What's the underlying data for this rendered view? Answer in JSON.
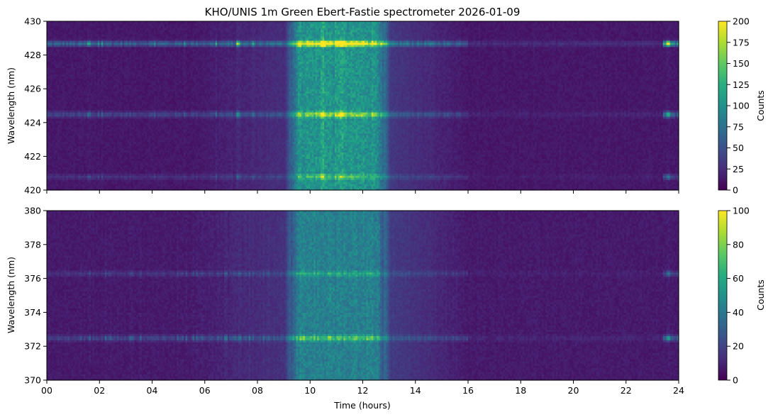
{
  "chart_data": [
    {
      "type": "heatmap",
      "title": "KHO/UNIS 1m Green Ebert-Fastie spectrometer 2026-01-09",
      "xlabel": "",
      "ylabel": "Wavelength (nm)",
      "xlim": [
        0,
        24
      ],
      "ylim": [
        420,
        430
      ],
      "x_ticks": [
        "00",
        "02",
        "04",
        "06",
        "08",
        "10",
        "12",
        "14",
        "16",
        "18",
        "20",
        "22",
        "24"
      ],
      "x_tick_labels_shown": false,
      "y_ticks": [
        "420",
        "422",
        "424",
        "426",
        "428",
        "430"
      ],
      "colormap": "viridis",
      "colorbar": {
        "label": "Counts",
        "range": [
          0,
          200
        ],
        "ticks": [
          "0",
          "25",
          "50",
          "75",
          "100",
          "125",
          "150",
          "175",
          "200"
        ]
      },
      "background_level": 18,
      "emission_lines": [
        {
          "wavelength": 428.7,
          "peak": 200
        },
        {
          "wavelength": 424.5,
          "peak": 120
        },
        {
          "wavelength": 420.8,
          "peak": 60
        }
      ],
      "daylight_band": {
        "start_hour": 9.3,
        "end_hour": 12.8,
        "level": 110
      },
      "bright_event_hours": [
        7.3,
        10.5,
        11.2,
        23.6
      ]
    },
    {
      "type": "heatmap",
      "title": "",
      "xlabel": "Time (hours)",
      "ylabel": "Wavelength (nm)",
      "xlim": [
        0,
        24
      ],
      "ylim": [
        370,
        380
      ],
      "x_ticks": [
        "00",
        "02",
        "04",
        "06",
        "08",
        "10",
        "12",
        "14",
        "16",
        "18",
        "20",
        "22",
        "24"
      ],
      "x_tick_labels_shown": true,
      "y_ticks": [
        "370",
        "372",
        "374",
        "376",
        "378",
        "380"
      ],
      "colormap": "viridis",
      "colorbar": {
        "label": "Counts",
        "range": [
          0,
          100
        ],
        "ticks": [
          "0",
          "20",
          "40",
          "60",
          "80",
          "100"
        ]
      },
      "background_level": 10,
      "emission_lines": [
        {
          "wavelength": 372.5,
          "peak": 55
        },
        {
          "wavelength": 376.3,
          "peak": 30
        }
      ],
      "daylight_band": {
        "start_hour": 9.3,
        "end_hour": 12.8,
        "level": 45
      },
      "bright_event_hours": [
        3.2,
        7.3,
        23.6
      ]
    }
  ]
}
